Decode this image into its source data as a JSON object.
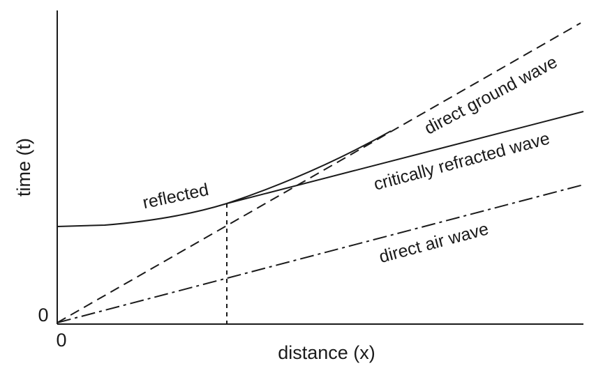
{
  "axes": {
    "y_label": "time (t)",
    "x_label": "distance (x)",
    "y_origin": "0",
    "x_origin": "0"
  },
  "curves": {
    "reflected": "reflected",
    "direct_ground_wave": "direct ground wave",
    "critically_refracted_wave": "critically refracted wave",
    "direct_air_wave": "direct air wave"
  }
}
